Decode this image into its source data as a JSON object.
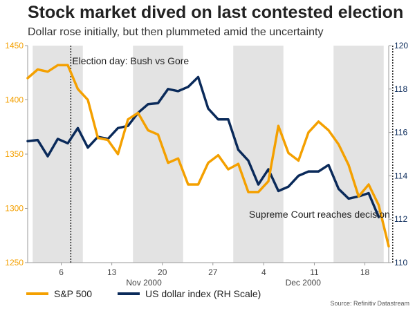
{
  "colors": {
    "sp500": "#F4A000",
    "usd": "#0A2A5A",
    "shade": "#E3E3E3",
    "left_axis": "#F4A000",
    "right_axis": "#0A2A5A"
  },
  "chart_data": {
    "type": "line",
    "title": "Stock market dived on last contested election",
    "subtitle": "Dollar rose initially, but then plummeted amid the uncertainty",
    "source": "Source: Refinitiv Datastream",
    "x_day_ticks": [
      "6",
      "13",
      "20",
      "27",
      "4",
      "11",
      "18"
    ],
    "x_month_labels": [
      "Nov 2000",
      "Dec 2000"
    ],
    "left_axis": {
      "label": "S&P 500",
      "ylim": [
        1250,
        1450
      ],
      "ticks": [
        1250,
        1300,
        1350,
        1400,
        1450
      ]
    },
    "right_axis": {
      "label": "US dollar index (RH Scale)",
      "ylim": [
        110,
        120
      ],
      "ticks": [
        110,
        112,
        114,
        116,
        118,
        120
      ]
    },
    "annotations": [
      {
        "text": "Election day: Bush vs Gore",
        "at_day_index": 4.3
      },
      {
        "text": "Supreme Court reaches decision",
        "at_day_index": 36.4
      }
    ],
    "shaded_weeks": [
      [
        1,
        6
      ],
      [
        11,
        16
      ],
      [
        21,
        26
      ],
      [
        31,
        36
      ],
      [
        41,
        44
      ]
    ],
    "series": [
      {
        "name": "S&P 500",
        "axis": "left",
        "values": [
          1420,
          1428,
          1426,
          1432,
          1432,
          1410,
          1400,
          1365,
          1363,
          1350,
          1382,
          1388,
          1372,
          1368,
          1342,
          1346,
          1322,
          1322,
          1342,
          1349,
          1336,
          1341,
          1315,
          1315,
          1325,
          1376,
          1351,
          1344,
          1370,
          1380,
          1372,
          1359,
          1340,
          1311,
          1322,
          1303,
          1265
        ]
      },
      {
        "name": "US dollar index (RH Scale)",
        "axis": "right",
        "values": [
          115.6,
          115.65,
          114.9,
          115.7,
          115.5,
          116.2,
          115.3,
          115.8,
          115.7,
          116.2,
          116.3,
          116.9,
          117.3,
          117.35,
          118.0,
          117.9,
          118.1,
          118.55,
          117.1,
          116.6,
          116.6,
          115.2,
          114.7,
          113.6,
          114.3,
          113.3,
          113.5,
          114.0,
          114.2,
          114.2,
          114.5,
          113.4,
          112.95,
          113.05,
          113.2,
          112.1
        ]
      }
    ]
  }
}
